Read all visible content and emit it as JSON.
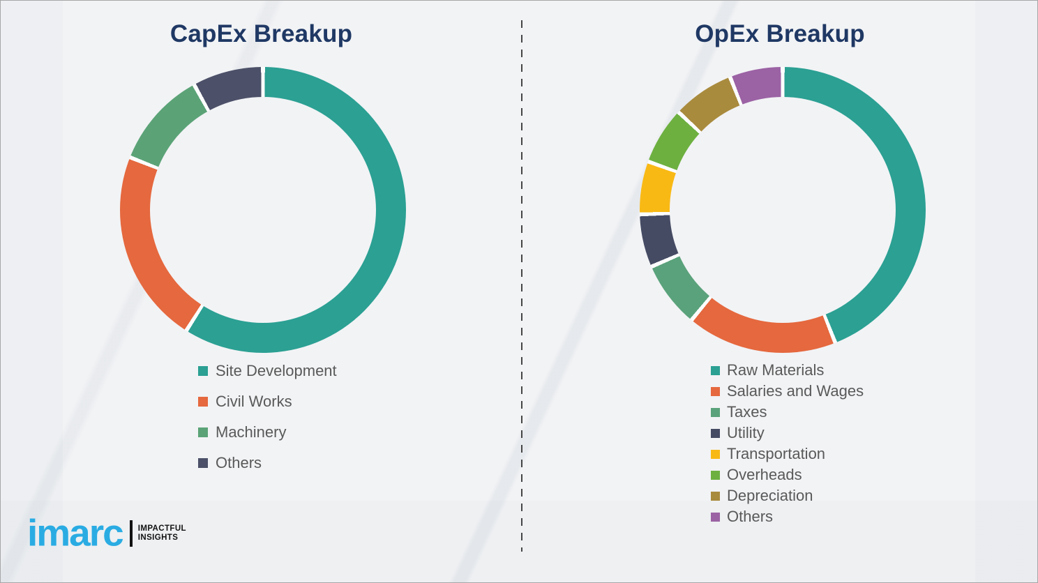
{
  "page": {
    "background_color": "#f2f3f5",
    "divider_color": "#454545",
    "segment_gap_color": "#fcfdfd",
    "title_color": "#1f3864",
    "legend_text_color": "#595959"
  },
  "chart_data": [
    {
      "type": "pie",
      "subtype": "donut",
      "title": "CapEx Breakup",
      "categories": [
        "Site Development",
        "Civil Works",
        "Machinery",
        "Others"
      ],
      "values": [
        59,
        22,
        11,
        8
      ],
      "colors": [
        "#2BA093",
        "#E5683E",
        "#5BA377",
        "#4C5068"
      ],
      "value_note": "percent shares estimated from arc angles; no numeric labels shown",
      "start": "12 o'clock, clockwise",
      "legend_position": "below chart, left-aligned",
      "grid": false
    },
    {
      "type": "pie",
      "subtype": "donut",
      "title": "OpEx Breakup",
      "categories": [
        "Raw Materials",
        "Salaries and Wages",
        "Taxes",
        "Utility",
        "Transportation",
        "Overheads",
        "Depreciation",
        "Others"
      ],
      "values": [
        44,
        17,
        7.5,
        6,
        6,
        6.5,
        7,
        6
      ],
      "colors": [
        "#2BA093",
        "#E5683E",
        "#5AA27B",
        "#454B63",
        "#F9B915",
        "#6DB040",
        "#A98B3E",
        "#9B62A4"
      ],
      "value_note": "percent shares estimated from arc angles; no numeric labels shown",
      "start": "12 o'clock, clockwise",
      "legend_position": "below chart, left-aligned",
      "grid": false
    }
  ],
  "logo": {
    "brand": "imarc",
    "brand_color": "#2AACE3",
    "tagline_line1": "IMPACTFUL",
    "tagline_line2": "INSIGHTS"
  }
}
